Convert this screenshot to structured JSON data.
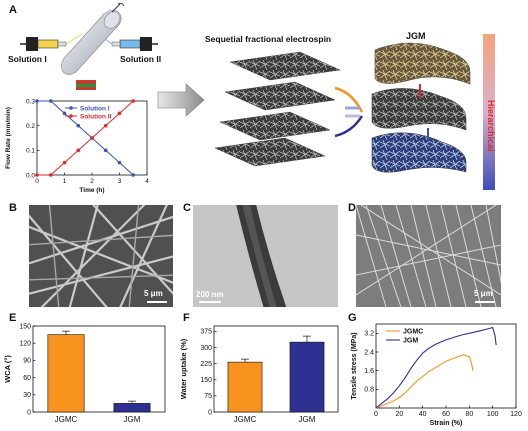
{
  "panels": {
    "a": {
      "label": "A",
      "solution1": "Solution I",
      "solution2": "Solution II",
      "process_title": "Sequetial fractional electrospin",
      "product": "JGM",
      "gradient_label": "Hierarchical"
    },
    "b": {
      "label": "B",
      "scale_bar": "5 μm"
    },
    "c": {
      "label": "C",
      "scale_bar": "200 nm"
    },
    "d": {
      "label": "D",
      "scale_bar": "5 μm"
    },
    "e": {
      "label": "E"
    },
    "f": {
      "label": "F"
    },
    "g": {
      "label": "G"
    }
  },
  "colors": {
    "orange": "#f7931e",
    "blue": "#2e3192",
    "red": "#e0282b",
    "flow_blue": "#3a55b4"
  },
  "chart_data": [
    {
      "id": "flow-rate",
      "type": "line",
      "xlabel": "Time (h)",
      "ylabel": "Flow Rate (mm/min)",
      "xlim": [
        0,
        4
      ],
      "ylim": [
        0,
        0.3
      ],
      "xticks": [
        "0",
        "1",
        "2",
        "3",
        "4"
      ],
      "yticks": [
        "0.0",
        "0.1",
        "0.2",
        "0.3"
      ],
      "legend_position": "top-center",
      "x": [
        0,
        0.5,
        1.0,
        1.5,
        2.0,
        2.5,
        3.0,
        3.5
      ],
      "series": [
        {
          "name": "Solution I",
          "color": "#3a55b4",
          "values": [
            0.3,
            0.3,
            0.25,
            0.2,
            0.15,
            0.1,
            0.05,
            0.0
          ]
        },
        {
          "name": "Solution II",
          "color": "#e0282b",
          "values": [
            0.0,
            0.0,
            0.05,
            0.1,
            0.15,
            0.2,
            0.25,
            0.3
          ]
        }
      ]
    },
    {
      "id": "wca",
      "type": "bar",
      "ylabel": "WCA (°)",
      "ylim": [
        0,
        150
      ],
      "yticks": [
        "0",
        "30",
        "60",
        "90",
        "120",
        "150"
      ],
      "categories": [
        "JGMC",
        "JGM"
      ],
      "values": [
        135,
        15
      ],
      "errors": [
        6,
        4
      ],
      "colors": [
        "#f7931e",
        "#2e3192"
      ]
    },
    {
      "id": "water-uptake",
      "type": "bar",
      "ylabel": "Water uptake (%)",
      "ylim": [
        0,
        400
      ],
      "yticks": [
        "0",
        "75",
        "150",
        "225",
        "300",
        "375"
      ],
      "categories": [
        "JGMC",
        "JGM"
      ],
      "values": [
        232,
        325
      ],
      "errors": [
        14,
        28
      ],
      "colors": [
        "#f7931e",
        "#2e3192"
      ]
    },
    {
      "id": "tensile",
      "type": "line",
      "xlabel": "Strain (%)",
      "ylabel": "Tensile stress (MPa)",
      "xlim": [
        0,
        120
      ],
      "ylim": [
        0,
        3.6
      ],
      "xticks": [
        "0",
        "20",
        "40",
        "60",
        "80",
        "100",
        "120"
      ],
      "yticks": [
        "0.8",
        "1.6",
        "2.4",
        "3.2"
      ],
      "legend_position": "top-left",
      "series": [
        {
          "name": "JGMC",
          "color": "#f7931e",
          "x": [
            0,
            5,
            10,
            15,
            20,
            25,
            30,
            35,
            40,
            45,
            50,
            55,
            60,
            65,
            70,
            75,
            80,
            82,
            83
          ],
          "y": [
            0,
            0.1,
            0.2,
            0.3,
            0.45,
            0.65,
            0.9,
            1.15,
            1.35,
            1.55,
            1.7,
            1.85,
            2.0,
            2.1,
            2.2,
            2.28,
            2.2,
            1.9,
            1.6
          ]
        },
        {
          "name": "JGM",
          "color": "#2e3192",
          "x": [
            0,
            5,
            10,
            15,
            20,
            25,
            30,
            35,
            40,
            45,
            50,
            55,
            60,
            65,
            70,
            75,
            80,
            85,
            90,
            95,
            100,
            102,
            103
          ],
          "y": [
            0,
            0.2,
            0.4,
            0.65,
            0.95,
            1.3,
            1.7,
            2.05,
            2.35,
            2.55,
            2.7,
            2.82,
            2.92,
            3.0,
            3.08,
            3.15,
            3.2,
            3.26,
            3.32,
            3.38,
            3.45,
            3.1,
            2.7
          ]
        }
      ]
    }
  ]
}
